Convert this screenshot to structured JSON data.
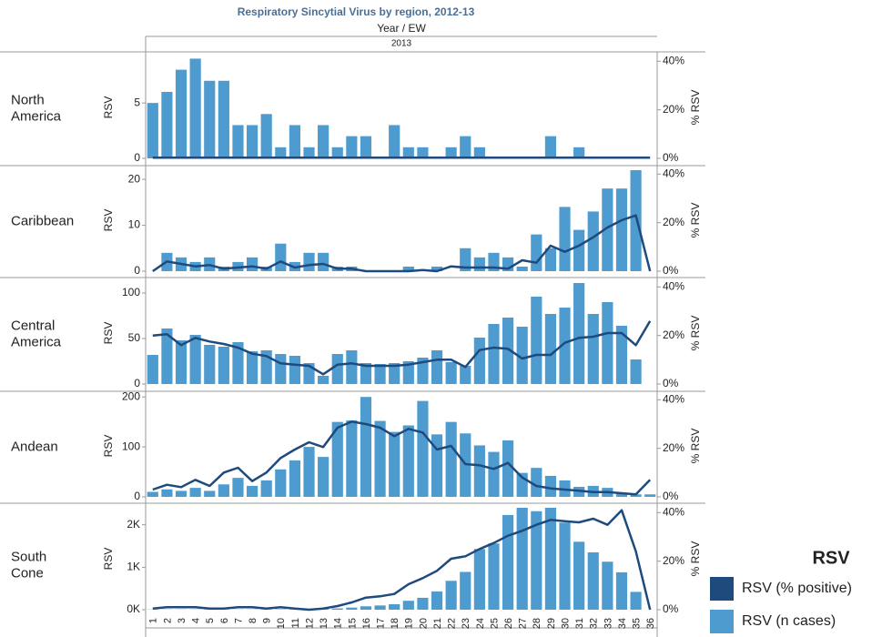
{
  "chart_data": {
    "type": "bar",
    "title": "Respiratory Sincytial Virus by region, 2012-13",
    "column_header": "Year  /  EW",
    "year": "2013",
    "categories": [
      "1",
      "2",
      "3",
      "4",
      "5",
      "6",
      "7",
      "8",
      "9",
      "10",
      "11",
      "12",
      "13",
      "14",
      "15",
      "16",
      "17",
      "18",
      "19",
      "20",
      "21",
      "22",
      "23",
      "24",
      "25",
      "26",
      "27",
      "28",
      "29",
      "30",
      "31",
      "32",
      "33",
      "34",
      "35",
      "36"
    ],
    "legend_title": "RSV",
    "series": [
      {
        "name": "RSV (% positive)",
        "color": "#1f4a7e",
        "axis": "y2"
      },
      {
        "name": "RSV (n cases)",
        "color": "#4e9bcf"
      }
    ],
    "panels": [
      {
        "name": "North America",
        "ylabel": "RSV",
        "y2label": "% RSV",
        "ylim": [
          0,
          9.2
        ],
        "yticks": [
          0,
          5
        ],
        "y2lim": [
          0,
          42
        ],
        "y2ticks": [
          {
            "value": 0,
            "label": "0%"
          },
          {
            "value": 20,
            "label": "20%"
          },
          {
            "value": 40,
            "label": "40%"
          }
        ],
        "values": [
          5,
          6,
          8,
          9,
          7,
          7,
          3,
          3,
          4,
          1,
          3,
          1,
          3,
          1,
          2,
          2,
          0,
          3,
          1,
          1,
          0,
          1,
          2,
          1,
          0,
          0,
          0,
          0,
          2,
          0,
          1,
          0,
          0,
          0,
          0,
          0
        ],
        "line": [
          0.3,
          0.3,
          0.3,
          0.3,
          0.3,
          0.3,
          0.3,
          0.3,
          0.3,
          0.3,
          0.3,
          0.3,
          0.3,
          0.3,
          0.3,
          0.3,
          0.3,
          0.3,
          0.3,
          0.3,
          0.3,
          0.3,
          0.3,
          0.3,
          0.3,
          0.3,
          0.3,
          0.3,
          0.3,
          0.3,
          0.3,
          0.3,
          0.3,
          0.3,
          0.3,
          0.3
        ]
      },
      {
        "name": "Caribbean",
        "ylabel": "RSV",
        "y2label": "% RSV",
        "ylim": [
          0,
          22.2
        ],
        "yticks": [
          0,
          10,
          20
        ],
        "y2lim": [
          0,
          42
        ],
        "y2ticks": [
          {
            "value": 0,
            "label": "0%"
          },
          {
            "value": 20,
            "label": "20%"
          },
          {
            "value": 40,
            "label": "40%"
          }
        ],
        "values": [
          0,
          4,
          3,
          2,
          3,
          1,
          2,
          3,
          1,
          6,
          2,
          4,
          4,
          1,
          1,
          0,
          0,
          0,
          1,
          0,
          1,
          0,
          5,
          3,
          4,
          3,
          1,
          8,
          5,
          14,
          9,
          13,
          18,
          18,
          22,
          0
        ],
        "line": [
          0,
          4,
          3,
          2,
          2.5,
          1,
          1.5,
          2,
          1,
          4,
          1.5,
          2.5,
          3,
          1,
          1,
          0,
          0,
          0,
          0,
          0.5,
          0,
          2,
          1.5,
          1.5,
          1.5,
          1,
          4.5,
          3.5,
          10.5,
          8,
          10.5,
          14,
          18,
          21,
          23,
          0
        ]
      },
      {
        "name": "Central America",
        "ylabel": "RSV",
        "y2label": "% RSV",
        "ylim": [
          0,
          112
        ],
        "yticks": [
          0,
          50,
          100
        ],
        "y2lim": [
          0,
          42
        ],
        "y2ticks": [
          {
            "value": 0,
            "label": "0%"
          },
          {
            "value": 20,
            "label": "20%"
          },
          {
            "value": 40,
            "label": "40%"
          }
        ],
        "values": [
          32,
          61,
          48,
          54,
          43,
          41,
          46,
          36,
          37,
          33,
          31,
          23,
          9,
          33,
          37,
          23,
          22,
          23,
          25,
          29,
          37,
          24,
          20,
          51,
          66,
          73,
          63,
          96,
          77,
          84,
          111,
          77,
          90,
          64,
          27,
          0
        ],
        "line": [
          20,
          20.5,
          16,
          19,
          17.5,
          16.5,
          15,
          12.5,
          11.5,
          8.5,
          8,
          7.5,
          4,
          8,
          8.5,
          7.5,
          7.5,
          7.5,
          8,
          9,
          10,
          10,
          7,
          14,
          15,
          14.5,
          10.5,
          12,
          12,
          17,
          19,
          19.5,
          21,
          21,
          16,
          26
        ]
      },
      {
        "name": "Andean",
        "ylabel": "RSV",
        "y2label": "% RSV",
        "ylim": [
          0,
          204
        ],
        "yticks": [
          0,
          100,
          200
        ],
        "y2lim": [
          0,
          42
        ],
        "y2ticks": [
          {
            "value": 0,
            "label": "0%"
          },
          {
            "value": 20,
            "label": "20%"
          },
          {
            "value": 40,
            "label": "40%"
          }
        ],
        "values": [
          10,
          15,
          12,
          18,
          12,
          25,
          38,
          22,
          33,
          55,
          73,
          100,
          80,
          150,
          153,
          200,
          152,
          130,
          143,
          192,
          125,
          150,
          127,
          103,
          90,
          113,
          48,
          58,
          42,
          33,
          20,
          22,
          18,
          8,
          5,
          5
        ],
        "line": [
          3,
          5,
          4,
          7,
          4.5,
          10,
          12,
          6.5,
          10,
          16,
          19.5,
          22.5,
          20.5,
          28.5,
          31,
          30,
          28.5,
          25,
          28,
          26.5,
          19.5,
          21,
          13.5,
          13,
          11.5,
          14,
          8,
          4.5,
          3.5,
          3,
          2.5,
          2,
          2,
          1.5,
          1,
          7
        ]
      },
      {
        "name": "South Cone",
        "ylabel": "RSV",
        "y2label": "% RSV",
        "ylim": [
          0,
          2400
        ],
        "yticks": [
          {
            "value": 0,
            "label": "0K"
          },
          {
            "value": 1000,
            "label": "1K"
          },
          {
            "value": 2000,
            "label": "2K"
          }
        ],
        "y2lim": [
          0,
          42
        ],
        "y2ticks": [
          {
            "value": 0,
            "label": "0%"
          },
          {
            "value": 20,
            "label": "20%"
          },
          {
            "value": 40,
            "label": "40%"
          }
        ],
        "values": [
          5,
          5,
          5,
          5,
          5,
          5,
          5,
          5,
          5,
          10,
          5,
          10,
          20,
          30,
          50,
          80,
          100,
          130,
          210,
          280,
          430,
          680,
          890,
          1430,
          1560,
          2230,
          2400,
          2320,
          2400,
          2050,
          1600,
          1350,
          1130,
          880,
          420,
          0
        ],
        "line": [
          0.5,
          1,
          1,
          1,
          0.5,
          0.5,
          1,
          1,
          0.5,
          1,
          0.5,
          0,
          0.5,
          1.5,
          3,
          5,
          5.5,
          6.5,
          10.5,
          13,
          16,
          21,
          22,
          25,
          27.5,
          30.5,
          32.5,
          35,
          37,
          36.5,
          36,
          37.5,
          35,
          41,
          24,
          0
        ]
      }
    ]
  }
}
